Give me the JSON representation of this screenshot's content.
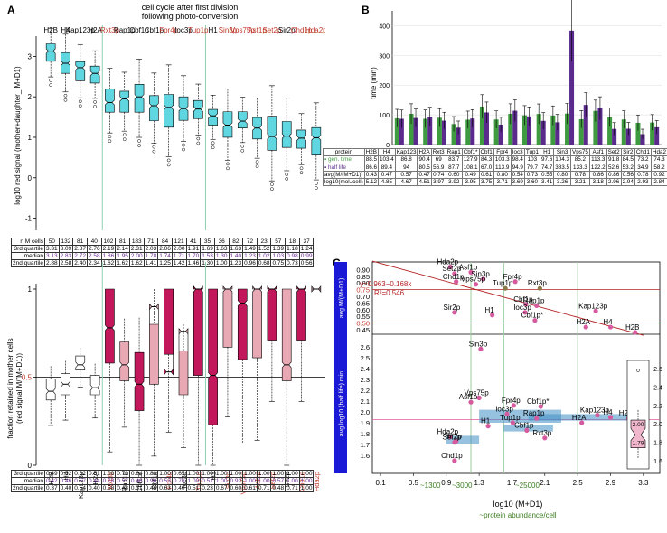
{
  "panels": {
    "a": "A",
    "b": "B",
    "c": "C"
  },
  "panel_a_top": {
    "title_line1": "cell cycle after first division",
    "title_line2": "following photo-conversion",
    "ylabel": "log10 red signal (mother+daughter_ M+D1)",
    "proteins": [
      "H2B",
      "H4",
      "Kap123p",
      "H2A",
      "Rxt3p",
      "Rap1p",
      "Cbf1p",
      "Cbf1p",
      "Fpr4p",
      "Ioc3p",
      "Tup1p",
      "H1",
      "Sin3p",
      "Vps75p",
      "Asf1p",
      "Set2p",
      "Sir2p",
      "Chd1p",
      "Hda2p"
    ],
    "red_proteins": [
      "Rxt3p",
      "Fpr4p",
      "Tup1p",
      "Sin3p",
      "Vps75p",
      "Asf1p",
      "Set2p",
      "Chd1p",
      "Hda2p"
    ],
    "yticks": [
      "3",
      "2",
      "1",
      "0",
      "-1"
    ],
    "table": {
      "rows": [
        {
          "label": "n M cells",
          "values": [
            "50",
            "132",
            "81",
            "40",
            "102",
            "81",
            "183",
            "71",
            "84",
            "121",
            "41",
            "35",
            "36",
            "82",
            "72",
            "23",
            "57",
            "18",
            "37"
          ]
        },
        {
          "label": "3rd quartile",
          "values": [
            "3.31",
            "3.09",
            "2.87",
            "2.76",
            "2.19",
            "2.14",
            "2.31",
            "2.03",
            "2.06",
            "2.00",
            "1.91",
            "1.69",
            "1.63",
            "1.63",
            "1.49",
            "1.52",
            "1.39",
            "1.18",
            "1.24"
          ]
        },
        {
          "label": "median",
          "values": [
            "3.13",
            "2.83",
            "2.72",
            "2.58",
            "1.86",
            "1.95",
            "2.00",
            "1.78",
            "1.74",
            "1.71",
            "1.70",
            "1.53",
            "1.30",
            "1.40",
            "1.23",
            "1.02",
            "1.03",
            "0.98",
            "0.99"
          ]
        },
        {
          "label": "2nd quartile",
          "values": [
            "2.88",
            "2.58",
            "2.40",
            "2.34",
            "1.62",
            "1.62",
            "1.62",
            "1.41",
            "1.25",
            "1.42",
            "1.46",
            "1.30",
            "1.00",
            "1.23",
            "0.96",
            "0.68",
            "0.75",
            "0.73",
            "0.56"
          ]
        }
      ]
    },
    "chart_data": {
      "type": "box",
      "title": "cell cycle after first division following photo-conversion",
      "ylabel": "log10 red signal (mother+daughter_ M+D1)",
      "ylim": [
        -1.3,
        3.5
      ],
      "categories": [
        "H2B",
        "H4",
        "Kap123p",
        "H2A",
        "Rxt3p",
        "Rap1p",
        "Cbf1p",
        "Cbf1p",
        "Fpr4p",
        "Ioc3p",
        "Tup1p",
        "H1",
        "Sin3p",
        "Vps75p",
        "Asf1p",
        "Set2p",
        "Sir2p",
        "Chd1p",
        "Hda2p"
      ],
      "q3": [
        3.31,
        3.09,
        2.87,
        2.76,
        2.19,
        2.14,
        2.31,
        2.03,
        2.06,
        2.0,
        1.91,
        1.69,
        1.63,
        1.63,
        1.49,
        1.52,
        1.39,
        1.18,
        1.24
      ],
      "median": [
        3.13,
        2.83,
        2.72,
        2.58,
        1.86,
        1.95,
        2.0,
        1.78,
        1.74,
        1.71,
        1.7,
        1.53,
        1.3,
        1.4,
        1.23,
        1.02,
        1.03,
        0.98,
        0.99
      ],
      "q1": [
        2.88,
        2.58,
        2.4,
        2.34,
        1.62,
        1.62,
        1.62,
        1.41,
        1.25,
        1.42,
        1.46,
        1.3,
        1.0,
        1.23,
        0.96,
        0.68,
        0.75,
        0.73,
        0.56
      ]
    }
  },
  "panel_a_bottom": {
    "ylabel_line1": "fraction retained in mother cells",
    "ylabel_line2": "(red signal M/(M+D1))",
    "yticks": [
      "1",
      "0.5",
      "0"
    ],
    "half_label": "0.5",
    "proteins": [
      "H2B",
      "H4",
      "Kap123p",
      "H2A",
      "Rxt3p",
      "Rap1p",
      "Cbf1p*",
      "Cbf1p",
      "Fpr4p",
      "Ioc3p",
      "Tup1p",
      "H1",
      "Sin3p",
      "Vps75p",
      "Asf1p",
      "Set2p",
      "Sir2p",
      "Chd1p",
      "Hda2p"
    ],
    "red_proteins": [
      "Rxt3p",
      "Fpr4p",
      "Tup1p",
      "Sin3p",
      "Vps75p",
      "Asf1p",
      "Set2p",
      "Chd1p",
      "Hda2p"
    ],
    "table": {
      "rows": [
        {
          "label": "3rd quartile",
          "values": [
            "0.49",
            "0.52",
            "0.62",
            "0.51",
            "1.00",
            "0.70",
            "0.64",
            "0.80",
            "1.00",
            "0.65",
            "1.00",
            "1.00",
            "1.00",
            "1.00",
            "1.00",
            "1.00",
            "1.00",
            "1.00",
            "1.00"
          ]
        },
        {
          "label": "median",
          "values": [
            "0.42",
            "0.46",
            "0.57",
            "0.44",
            "0.78",
            "0.57",
            "0.46",
            "0.90",
            "0.53",
            "0.76",
            "1.00",
            "0.51",
            "1.00",
            "0.92",
            "1.00",
            "1.00",
            "0.57",
            "1.00",
            "1.00"
          ]
        },
        {
          "label": "2nd quartile",
          "values": [
            "0.37",
            "0.40",
            "0.54",
            "0.40",
            "0.58",
            "0.48",
            "0.31",
            "0.46",
            "0.63",
            "0.40",
            "0.51",
            "0.23",
            "0.67",
            "0.60",
            "0.61",
            "0.71",
            "0.48",
            "0.71",
            "1.00"
          ]
        }
      ]
    },
    "chart_data": {
      "type": "box",
      "ylabel": "fraction retained in mother cells (red signal M/(M+D1))",
      "ylim": [
        0,
        1
      ],
      "categories": [
        "H2B",
        "H4",
        "Kap123p",
        "H2A",
        "Rxt3p",
        "Rap1p",
        "Cbf1p*",
        "Cbf1p",
        "Fpr4p",
        "Ioc3p",
        "Tup1p",
        "H1",
        "Sin3p",
        "Vps75p",
        "Asf1p",
        "Set2p",
        "Sir2p",
        "Chd1p",
        "Hda2p"
      ],
      "q3": [
        0.49,
        0.52,
        0.62,
        0.51,
        1.0,
        0.7,
        0.64,
        0.8,
        1.0,
        0.65,
        1.0,
        1.0,
        1.0,
        1.0,
        1.0,
        1.0,
        1.0,
        1.0,
        1.0
      ],
      "median": [
        0.42,
        0.46,
        0.57,
        0.44,
        0.78,
        0.57,
        0.46,
        0.9,
        0.53,
        0.76,
        1.0,
        0.51,
        1.0,
        0.92,
        1.0,
        1.0,
        0.57,
        1.0,
        1.0
      ],
      "q1": [
        0.37,
        0.4,
        0.54,
        0.4,
        0.58,
        0.48,
        0.31,
        0.46,
        0.63,
        0.4,
        0.51,
        0.23,
        0.67,
        0.6,
        0.61,
        0.71,
        0.48,
        0.71,
        1.0
      ]
    }
  },
  "panel_b": {
    "ylabel": "time (min)",
    "yticks": [
      "400",
      "300",
      "200",
      "100",
      "0"
    ],
    "table": {
      "header": [
        "protein",
        "H2B",
        "H4",
        "Kap123",
        "H2A",
        "Rxt3",
        "Rap1",
        "Cbf1*",
        "Cbf1",
        "Fpr4",
        "Ioc3",
        "Tup1",
        "H1",
        "Sin3",
        "Vps75",
        "Asf1",
        "Set2",
        "Sir2",
        "Chd1",
        "Hda2"
      ],
      "rows": [
        {
          "label": "gen. time",
          "values": [
            "88.5",
            "103.4",
            "86.8",
            "90.4",
            "69",
            "83.7",
            "127.9",
            "84.3",
            "103.3",
            "98.4",
            "103",
            "97.6",
            "104.3",
            "85.2",
            "113.3",
            "91.8",
            "84.5",
            "73.2",
            "74.3"
          ]
        },
        {
          "label": "half life",
          "values": [
            "86.6",
            "89.4",
            "94",
            "80.5",
            "56.9",
            "87.7",
            "108.1",
            "67.0",
            "113.9",
            "94.9",
            "79.7",
            "74.7",
            "383.5",
            "133.3",
            "122.2",
            "52.6",
            "53.2",
            "34.9",
            "58.2"
          ]
        },
        {
          "label": "avg(M/(M+D1))",
          "values": [
            "0.43",
            "0.47",
            "0.57",
            "0.47",
            "0.74",
            "0.60",
            "0.49",
            "0.61",
            "0.80",
            "0.54",
            "0.73",
            "0.55",
            "0.80",
            "0.78",
            "0.86",
            "0.86",
            "0.56",
            "0.78",
            "0.92"
          ]
        },
        {
          "label": "log10(mol./cell)",
          "values": [
            "5.12",
            "4.85",
            "4.67",
            "4.51",
            "3.97",
            "3.92",
            "3.95",
            "3.75",
            "3.71",
            "3.69",
            "3.60",
            "3.41",
            "3.26",
            "3.21",
            "3.18",
            "2.96",
            "2.94",
            "2.93",
            "2.84"
          ]
        }
      ]
    },
    "chart_data": {
      "type": "bar",
      "ylabel": "time (min)",
      "ylim": [
        0,
        450
      ],
      "categories": [
        "H2B",
        "H4",
        "Kap123",
        "H2A",
        "Rxt3",
        "Rap1",
        "Cbf1*",
        "Cbf1",
        "Fpr4",
        "Ioc3",
        "Tup1",
        "H1",
        "Sin3",
        "Vps75",
        "Asf1",
        "Set2",
        "Sir2",
        "Chd1",
        "Hda2"
      ],
      "series": [
        {
          "name": "gen. time",
          "color": "#3f9b3f",
          "values": [
            88.5,
            103.4,
            86.8,
            90.4,
            69,
            83.7,
            127.9,
            84.3,
            103.3,
            98.4,
            103,
            97.6,
            104.3,
            85.2,
            113.3,
            91.8,
            84.5,
            73.2,
            74.3
          ]
        },
        {
          "name": "half life",
          "color": "#5a2a8c",
          "values": [
            86.6,
            89.4,
            94,
            80.5,
            56.9,
            87.7,
            108.1,
            67.0,
            113.9,
            94.9,
            79.7,
            74.7,
            383.5,
            133.3,
            122.2,
            52.6,
            53.2,
            34.9,
            58.2
          ]
        }
      ]
    }
  },
  "panel_c": {
    "top_axis_label": "avg M/(M+D1)",
    "bottom_axis_label": "avg log10 (half life) min",
    "xlabel": "log10 (M+D1)",
    "xlabel2": "~protein abundance/cell",
    "range1": "~1300",
    "range2": "~3000",
    "range3": "~25000",
    "fit_eq": "y=0.963−0.168x",
    "fit_r2": "R²=0.546",
    "yticks_top": [
      "0.90",
      "0.85",
      "0.80",
      "0.75",
      "0.70",
      "0.65",
      "0.60",
      "0.55",
      "0.50",
      "0.45"
    ],
    "yticks_bottom": [
      "2.6",
      "2.5",
      "2.4",
      "2.3",
      "2.2",
      "2.1",
      "2.0",
      "1.9",
      "1.8",
      "1.7",
      "1.6"
    ],
    "xticks": [
      "0.1",
      "0.5",
      "0.9",
      "1.3",
      "1.7",
      "2.1",
      "2.5",
      "2.9",
      "3.3"
    ],
    "inset_ticks": [
      "2.6",
      "2.4",
      "2.2",
      "2.0",
      "1.8",
      "1.6"
    ],
    "inset_values": [
      "2.00",
      "1.79"
    ],
    "top_points": [
      {
        "label": "Hda2p",
        "x": 0.95,
        "y": 0.92
      },
      {
        "label": "Set2p",
        "x": 1.0,
        "y": 0.87
      },
      {
        "label": "Asf1p",
        "x": 1.2,
        "y": 0.88
      },
      {
        "label": "Chd1p",
        "x": 1.02,
        "y": 0.81
      },
      {
        "label": "Sin3p",
        "x": 1.35,
        "y": 0.83
      },
      {
        "label": "Vps75p",
        "x": 1.26,
        "y": 0.79
      },
      {
        "label": "Fpr4p",
        "x": 1.74,
        "y": 0.81
      },
      {
        "label": "Tup1p",
        "x": 1.62,
        "y": 0.76
      },
      {
        "label": "Rxt3p",
        "x": 2.04,
        "y": 0.76
      },
      {
        "label": "Cbf1p",
        "x": 1.87,
        "y": 0.64
      },
      {
        "label": "Rap1p",
        "x": 2.0,
        "y": 0.63
      },
      {
        "label": "Ioc3p",
        "x": 1.86,
        "y": 0.58
      },
      {
        "label": "Sir2p",
        "x": 1.0,
        "y": 0.58
      },
      {
        "label": "H1",
        "x": 1.46,
        "y": 0.56
      },
      {
        "label": "Cbf1p*",
        "x": 1.98,
        "y": 0.52
      },
      {
        "label": "Kap123p",
        "x": 2.72,
        "y": 0.59
      },
      {
        "label": "H2A",
        "x": 2.6,
        "y": 0.47
      },
      {
        "label": "H4",
        "x": 2.9,
        "y": 0.47
      },
      {
        "label": "H2B",
        "x": 3.2,
        "y": 0.43
      }
    ],
    "bottom_points": [
      {
        "label": "Sin3p",
        "x": 1.32,
        "y": 2.58
      },
      {
        "label": "Vps75p",
        "x": 1.3,
        "y": 2.13
      },
      {
        "label": "Asf1p",
        "x": 1.2,
        "y": 2.09
      },
      {
        "label": "Fpr4p",
        "x": 1.72,
        "y": 2.06
      },
      {
        "label": "Cbf1p*",
        "x": 2.05,
        "y": 2.05
      },
      {
        "label": "Ioc3p",
        "x": 1.64,
        "y": 1.98
      },
      {
        "label": "Kap123p",
        "x": 2.74,
        "y": 1.97
      },
      {
        "label": "H1",
        "x": 1.41,
        "y": 1.87
      },
      {
        "label": "Tup1p",
        "x": 1.71,
        "y": 1.9
      },
      {
        "label": "Rap1p",
        "x": 2.0,
        "y": 1.94
      },
      {
        "label": "H2B",
        "x": 3.12,
        "y": 1.94
      },
      {
        "label": "H4",
        "x": 2.9,
        "y": 1.95
      },
      {
        "label": "H2A",
        "x": 2.55,
        "y": 1.9
      },
      {
        "label": "Hda2p",
        "x": 0.95,
        "y": 1.77
      },
      {
        "label": "Sir2p",
        "x": 1.02,
        "y": 1.73
      },
      {
        "label": "Set2p",
        "x": 1.0,
        "y": 1.72
      },
      {
        "label": "Cbf1p",
        "x": 1.88,
        "y": 1.83
      },
      {
        "label": "Rxt3p",
        "x": 2.1,
        "y": 1.76
      },
      {
        "label": "Chd1p",
        "x": 1.0,
        "y": 1.55
      }
    ]
  }
}
